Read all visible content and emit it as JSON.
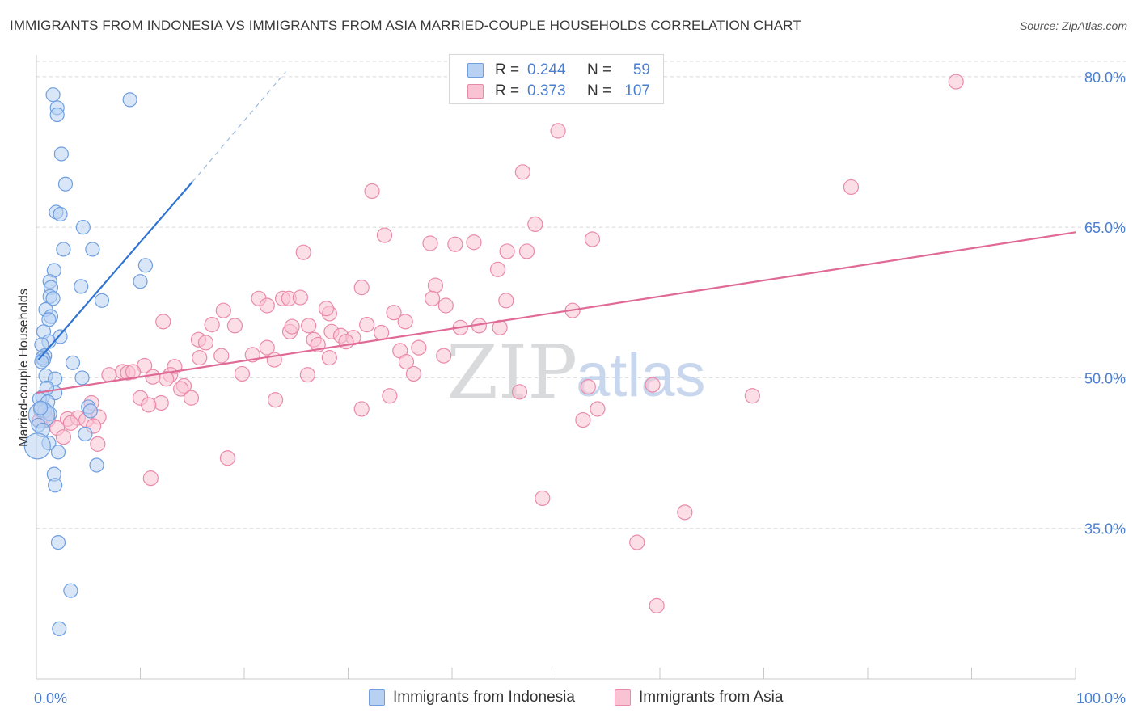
{
  "header": {
    "title": "IMMIGRANTS FROM INDONESIA VS IMMIGRANTS FROM ASIA MARRIED-COUPLE HOUSEHOLDS CORRELATION CHART",
    "source": "Source: ZipAtlas.com"
  },
  "watermark": {
    "zip": "ZIP",
    "atlas": "atlas"
  },
  "legend": {
    "series": [
      {
        "name": "Immigrants from Indonesia",
        "r_label": "R =",
        "r_value": "0.244",
        "n_label": "N =",
        "n_value": "59",
        "fill": "#b8d1f3",
        "stroke": "#6f9fe0"
      },
      {
        "name": "Immigrants from Asia",
        "r_label": "R =",
        "r_value": "0.373",
        "n_label": "N =",
        "n_value": "107",
        "fill": "#f9c3d3",
        "stroke": "#e98aa9"
      }
    ]
  },
  "colors": {
    "blue_line": "#2f74d0",
    "pink_line": "#e06a96",
    "grid": "#d7d7d7",
    "tick_text": "#4a7fd0"
  },
  "chart_data": {
    "type": "scatter",
    "title": "IMMIGRANTS FROM INDONESIA VS IMMIGRANTS FROM ASIA MARRIED-COUPLE HOUSEHOLDS CORRELATION CHART",
    "xlabel": "",
    "ylabel": "Married-couple Households",
    "xlim": [
      0,
      100
    ],
    "ylim": [
      20,
      82
    ],
    "x_tick_labels": [
      {
        "value": 0,
        "label": "0.0%"
      },
      {
        "value": 100,
        "label": "100.0%"
      }
    ],
    "y_tick_labels": [
      {
        "value": 80,
        "label": "80.0%"
      },
      {
        "value": 65,
        "label": "65.0%"
      },
      {
        "value": 50,
        "label": "50.0%"
      },
      {
        "value": 35,
        "label": "35.0%"
      }
    ],
    "grid": true,
    "series": [
      {
        "name": "Immigrants from Indonesia",
        "trend": {
          "x": [
            0.2,
            15
          ],
          "y": [
            51.8,
            69.5
          ],
          "dashed_to": [
            24,
            80.5
          ]
        },
        "points": [
          [
            1.6,
            78.2
          ],
          [
            2.0,
            76.9
          ],
          [
            2.0,
            76.2
          ],
          [
            9.0,
            77.7
          ],
          [
            2.4,
            72.3
          ],
          [
            2.8,
            69.3
          ],
          [
            1.9,
            66.5
          ],
          [
            2.3,
            66.3
          ],
          [
            4.5,
            65.0
          ],
          [
            2.6,
            62.8
          ],
          [
            5.4,
            62.8
          ],
          [
            1.7,
            60.7
          ],
          [
            10.5,
            61.2
          ],
          [
            1.3,
            59.6
          ],
          [
            4.3,
            59.1
          ],
          [
            10.0,
            59.6
          ],
          [
            1.4,
            59.0
          ],
          [
            1.3,
            58.1
          ],
          [
            1.6,
            57.9
          ],
          [
            6.3,
            57.7
          ],
          [
            0.9,
            56.8
          ],
          [
            1.4,
            56.1
          ],
          [
            1.2,
            55.8
          ],
          [
            0.7,
            54.6
          ],
          [
            2.3,
            54.1
          ],
          [
            1.2,
            53.6
          ],
          [
            0.5,
            53.3
          ],
          [
            0.8,
            52.2
          ],
          [
            0.6,
            52.0
          ],
          [
            0.7,
            51.8
          ],
          [
            0.5,
            51.6
          ],
          [
            3.5,
            51.5
          ],
          [
            0.9,
            50.2
          ],
          [
            1.8,
            49.9
          ],
          [
            4.4,
            50.0
          ],
          [
            1.8,
            48.5
          ],
          [
            0.6,
            48.1
          ],
          [
            0.3,
            47.9
          ],
          [
            1.1,
            47.6
          ],
          [
            0.4,
            46.8
          ],
          [
            0.8,
            46.7
          ],
          [
            1.3,
            46.4
          ],
          [
            0.5,
            46.3
          ],
          [
            5.0,
            47.1
          ],
          [
            5.2,
            46.7
          ],
          [
            0.2,
            45.3
          ],
          [
            0.6,
            44.8
          ],
          [
            4.7,
            44.4
          ],
          [
            1.2,
            43.5
          ],
          [
            0.1,
            43.2
          ],
          [
            2.1,
            42.6
          ],
          [
            5.8,
            41.3
          ],
          [
            1.7,
            40.4
          ],
          [
            1.8,
            39.3
          ],
          [
            2.1,
            33.6
          ],
          [
            3.3,
            28.8
          ],
          [
            2.2,
            25.0
          ],
          [
            0.4,
            47.0
          ],
          [
            1.0,
            49.0
          ]
        ],
        "sizes": {
          "0.1,43.2": "large",
          "0.5,46.3": "large"
        }
      },
      {
        "name": "Immigrants from Asia",
        "trend": {
          "x": [
            0,
            100
          ],
          "y": [
            48.5,
            64.5
          ]
        },
        "points": [
          [
            88.5,
            79.5
          ],
          [
            50.2,
            74.6
          ],
          [
            46.8,
            70.5
          ],
          [
            78.4,
            69.0
          ],
          [
            32.3,
            68.6
          ],
          [
            48.0,
            65.3
          ],
          [
            33.5,
            64.2
          ],
          [
            53.5,
            63.8
          ],
          [
            37.9,
            63.4
          ],
          [
            40.3,
            63.3
          ],
          [
            42.1,
            63.5
          ],
          [
            45.3,
            62.6
          ],
          [
            47.2,
            62.6
          ],
          [
            25.7,
            62.5
          ],
          [
            44.4,
            60.8
          ],
          [
            31.3,
            59.0
          ],
          [
            38.4,
            59.2
          ],
          [
            21.4,
            57.9
          ],
          [
            23.7,
            57.9
          ],
          [
            24.3,
            57.9
          ],
          [
            25.4,
            58.0
          ],
          [
            22.2,
            57.2
          ],
          [
            38.1,
            57.9
          ],
          [
            39.4,
            57.2
          ],
          [
            45.2,
            57.7
          ],
          [
            51.6,
            56.7
          ],
          [
            18.0,
            56.7
          ],
          [
            28.2,
            56.4
          ],
          [
            27.9,
            56.9
          ],
          [
            34.4,
            56.5
          ],
          [
            16.9,
            55.3
          ],
          [
            19.1,
            55.2
          ],
          [
            24.4,
            54.6
          ],
          [
            26.2,
            55.2
          ],
          [
            31.8,
            55.3
          ],
          [
            35.5,
            55.6
          ],
          [
            40.8,
            55.0
          ],
          [
            42.6,
            55.2
          ],
          [
            44.6,
            55.0
          ],
          [
            12.2,
            55.6
          ],
          [
            24.6,
            55.1
          ],
          [
            28.4,
            54.6
          ],
          [
            29.3,
            54.2
          ],
          [
            30.5,
            54.0
          ],
          [
            33.2,
            54.5
          ],
          [
            15.6,
            53.8
          ],
          [
            16.3,
            53.5
          ],
          [
            22.2,
            53.0
          ],
          [
            26.7,
            53.8
          ],
          [
            27.1,
            53.3
          ],
          [
            29.8,
            53.6
          ],
          [
            35.0,
            52.7
          ],
          [
            36.8,
            53.0
          ],
          [
            20.8,
            52.3
          ],
          [
            17.8,
            52.2
          ],
          [
            15.7,
            52.0
          ],
          [
            22.9,
            51.8
          ],
          [
            28.2,
            52.0
          ],
          [
            35.6,
            51.6
          ],
          [
            39.2,
            52.2
          ],
          [
            10.4,
            51.2
          ],
          [
            13.3,
            51.1
          ],
          [
            8.3,
            50.6
          ],
          [
            8.8,
            50.5
          ],
          [
            7.0,
            50.3
          ],
          [
            9.3,
            50.6
          ],
          [
            12.9,
            50.3
          ],
          [
            19.8,
            50.4
          ],
          [
            26.1,
            50.3
          ],
          [
            36.3,
            50.4
          ],
          [
            12.5,
            49.9
          ],
          [
            11.2,
            50.1
          ],
          [
            14.2,
            49.2
          ],
          [
            13.9,
            48.9
          ],
          [
            10.0,
            48.0
          ],
          [
            12.0,
            47.5
          ],
          [
            14.9,
            48.0
          ],
          [
            23.0,
            47.8
          ],
          [
            34.0,
            48.2
          ],
          [
            46.5,
            48.6
          ],
          [
            53.1,
            49.1
          ],
          [
            59.3,
            49.3
          ],
          [
            68.9,
            48.2
          ],
          [
            10.8,
            47.3
          ],
          [
            0.5,
            46.6
          ],
          [
            0.8,
            46.2
          ],
          [
            1.1,
            45.8
          ],
          [
            0.3,
            45.7
          ],
          [
            3.0,
            45.9
          ],
          [
            4.0,
            46.0
          ],
          [
            4.8,
            45.8
          ],
          [
            5.3,
            47.5
          ],
          [
            6.0,
            46.1
          ],
          [
            2.0,
            45.0
          ],
          [
            5.5,
            45.2
          ],
          [
            3.3,
            45.5
          ],
          [
            54.0,
            46.9
          ],
          [
            52.6,
            45.8
          ],
          [
            31.3,
            46.9
          ],
          [
            2.6,
            44.1
          ],
          [
            5.9,
            43.4
          ],
          [
            18.4,
            42.0
          ],
          [
            11.0,
            40.0
          ],
          [
            48.7,
            38.0
          ],
          [
            62.4,
            36.6
          ],
          [
            57.8,
            33.6
          ],
          [
            59.7,
            27.3
          ]
        ]
      }
    ]
  }
}
